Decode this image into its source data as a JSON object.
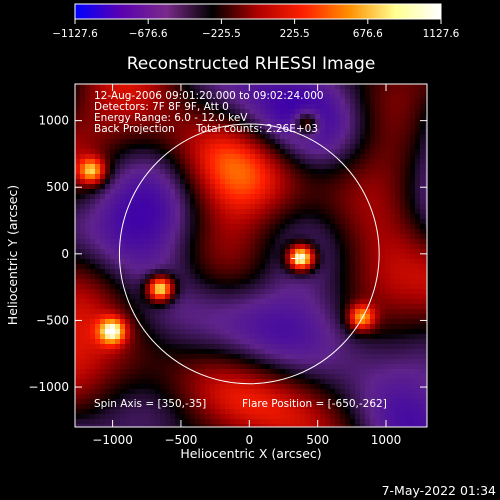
{
  "chart_data": {
    "type": "heatmap",
    "title": "Reconstructed RHESSI Image",
    "xlabel": "Heliocentric X (arcsec)",
    "ylabel": "Heliocentric Y (arcsec)",
    "xlim": [
      -1275,
      1300
    ],
    "ylim": [
      -1300,
      1275
    ],
    "xticks": [
      -1000,
      -500,
      0,
      500,
      1000
    ],
    "xtick_labels": [
      "−1000",
      "−500",
      "0",
      "500",
      "1000"
    ],
    "yticks": [
      -1000,
      -500,
      0,
      500,
      1000
    ],
    "yticks_labels": [
      "−1000",
      "−500",
      "0",
      "500",
      "1000"
    ],
    "colorbar": {
      "range": [
        -1127.6,
        1127.6
      ],
      "ticks": [
        -1127.6,
        -676.6,
        -225.5,
        225.5,
        676.6,
        1127.6
      ],
      "tick_labels": [
        "−1127.6",
        "−676.6",
        "−225.5",
        "225.5",
        "676.6",
        "1127.6"
      ],
      "colors": [
        "#0000ff",
        "#5a00b0",
        "#7a2a8a",
        "#000000",
        "#b00000",
        "#ff2000",
        "#ff9000",
        "#ffff90",
        "#ffffff"
      ]
    },
    "annotations": [
      "12-Aug-2006 09:01:20.000 to 09:02:24.000",
      "Detectors: 7F 8F 9F, Att 0",
      "Energy Range: 6.0 - 12.0 keV",
      "Back Projection",
      "Total counts: 2.26E+03"
    ],
    "spin_axis_text": "Spin Axis = [350,-35]",
    "flare_position_text": "Flare Position = [-650,-262]",
    "solar_disk": {
      "center": [
        0,
        0
      ],
      "radius_arcsec": 950
    },
    "spin_axis_marker": [
      350,
      -35
    ],
    "bright_sources": [
      {
        "x": 380,
        "y": -30,
        "level": 1.0
      },
      {
        "x": -650,
        "y": -262,
        "level": 0.9
      },
      {
        "x": -1150,
        "y": 620,
        "level": 0.6
      },
      {
        "x": -1000,
        "y": -580,
        "level": 0.65
      },
      {
        "x": 820,
        "y": -480,
        "level": 0.6
      },
      {
        "x": 420,
        "y": 980,
        "level": 0.55
      }
    ]
  },
  "footer": {
    "timestamp": "7-May-2022 01:34"
  }
}
